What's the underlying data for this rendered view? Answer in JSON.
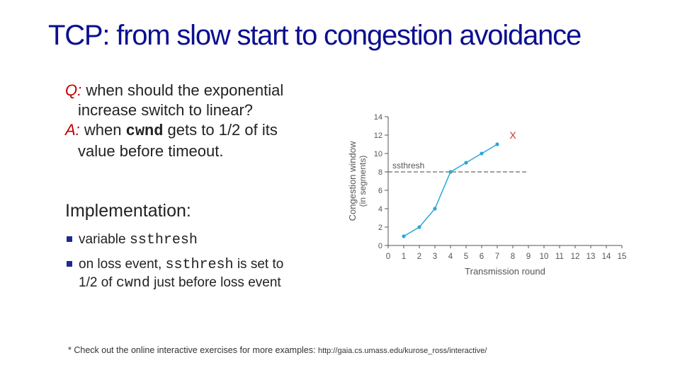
{
  "title": "TCP: from slow start to congestion avoidance",
  "qa": {
    "q_label": "Q:",
    "q_text_1": " when should the exponential",
    "q_text_2": "increase switch to linear?",
    "a_label": "A:",
    "a_text_1": " when ",
    "a_code": "cwnd",
    "a_text_2": " gets to 1/2 of its",
    "a_text_3": "value before timeout."
  },
  "implementation": {
    "heading": "Implementation:",
    "bullets": [
      {
        "pre": "variable ",
        "code": "ssthresh",
        "post": "",
        "post2": ""
      },
      {
        "pre": "on loss event, ",
        "code": "ssthresh",
        "post": " is set to",
        "line2_pre": "1/2 of ",
        "code2": "cwnd",
        "line2_post": "  just before loss event"
      }
    ],
    "bullet_color": "#1f2a8f"
  },
  "chart_data": {
    "type": "line",
    "xlabel": "Transmission round",
    "ylabel": "Congestion window",
    "ylabel2": "(in segments)",
    "x_ticks": [
      "0",
      "1",
      "2",
      "3",
      "4",
      "5",
      "6",
      "7",
      "8",
      "9",
      "10",
      "11",
      "12",
      "13",
      "14",
      "15"
    ],
    "y_ticks": [
      "0",
      "2",
      "4",
      "6",
      "8",
      "10",
      "12",
      "14"
    ],
    "xlim": [
      0,
      15
    ],
    "ylim": [
      0,
      14
    ],
    "series": [
      {
        "x": [
          1,
          2,
          3,
          4,
          5,
          6,
          7
        ],
        "y": [
          1,
          2,
          4,
          8,
          9,
          10,
          11
        ]
      }
    ],
    "loss_marker": {
      "x": 8,
      "y": 12,
      "label": "X"
    },
    "threshold": {
      "y": 8,
      "label": "ssthresh"
    },
    "line_color": "#2aa7d8",
    "loss_color": "#c0392b"
  },
  "footnote": {
    "text": "* Check out the online interactive exercises for more examples: ",
    "url": "http://gaia.cs.umass.edu/kurose_ross/interactive/"
  }
}
